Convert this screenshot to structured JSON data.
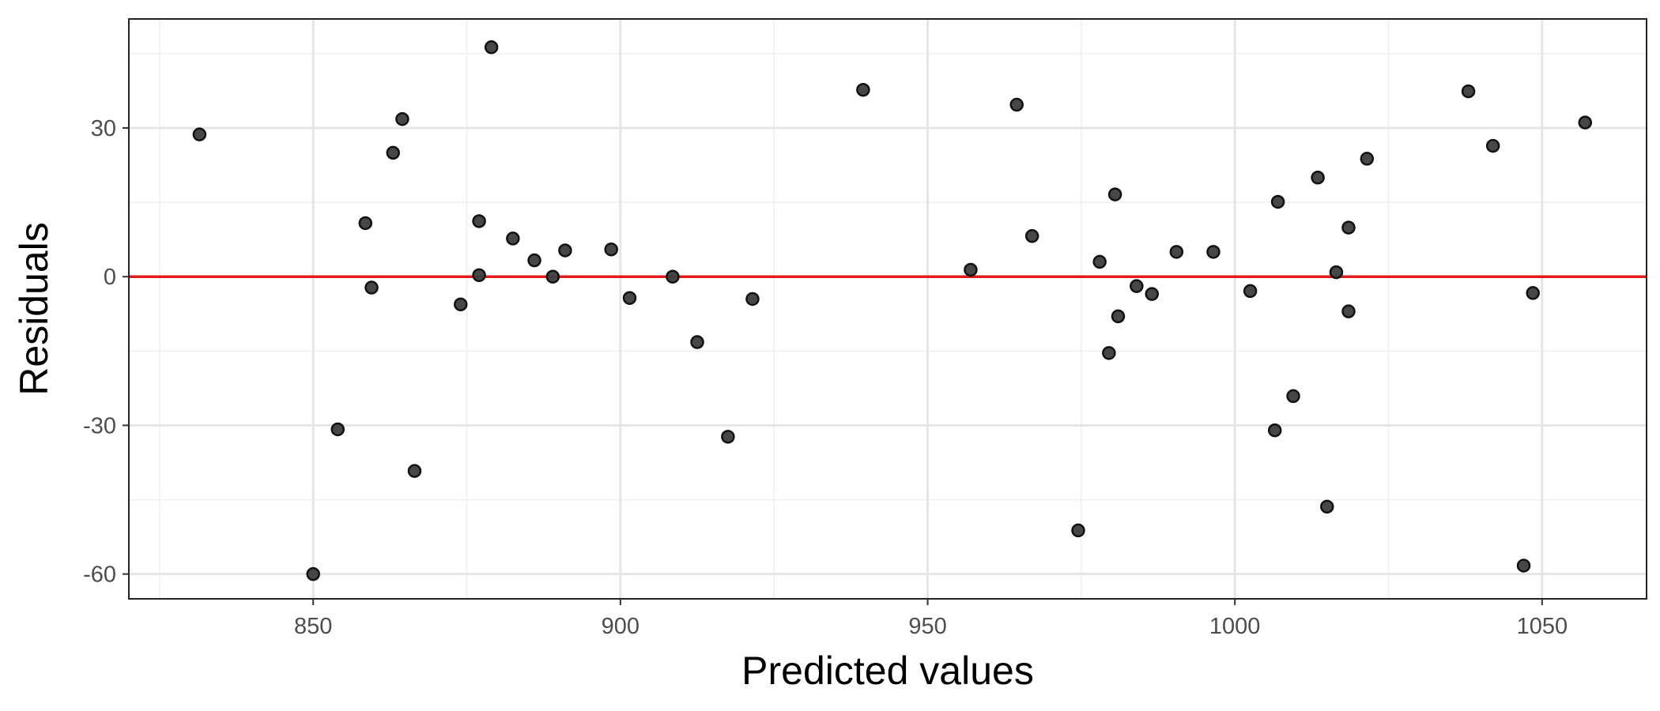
{
  "chart_data": {
    "type": "scatter",
    "title": "",
    "xlabel": "Predicted values",
    "ylabel": "Residuals",
    "xlim": [
      820,
      1067
    ],
    "ylim": [
      -65,
      52
    ],
    "xticks": [
      850,
      900,
      950,
      1000,
      1050
    ],
    "yticks": [
      -60,
      -30,
      0,
      30
    ],
    "xtick_labels": [
      "850",
      "900",
      "950",
      "1000",
      "1050"
    ],
    "ytick_labels": [
      "-60",
      "-30",
      "0",
      "30"
    ],
    "grid": true,
    "legend": "none",
    "reference_line": {
      "y": 0,
      "color": "#e31a1c"
    },
    "point_color": "#3d3d3d",
    "points": [
      {
        "x": 831.5,
        "y": 28.7
      },
      {
        "x": 850.0,
        "y": -60.0
      },
      {
        "x": 854.0,
        "y": -30.8
      },
      {
        "x": 858.5,
        "y": 10.8
      },
      {
        "x": 859.5,
        "y": -2.2
      },
      {
        "x": 863.0,
        "y": 25.0
      },
      {
        "x": 864.5,
        "y": 31.8
      },
      {
        "x": 866.5,
        "y": -39.2
      },
      {
        "x": 874.0,
        "y": -5.6
      },
      {
        "x": 877.0,
        "y": 11.2
      },
      {
        "x": 877.0,
        "y": 0.3
      },
      {
        "x": 879.0,
        "y": 46.3
      },
      {
        "x": 882.5,
        "y": 7.7
      },
      {
        "x": 886.0,
        "y": 3.3
      },
      {
        "x": 889.0,
        "y": 0.0
      },
      {
        "x": 891.0,
        "y": 5.3
      },
      {
        "x": 898.5,
        "y": 5.5
      },
      {
        "x": 901.5,
        "y": -4.3
      },
      {
        "x": 908.5,
        "y": 0.0
      },
      {
        "x": 912.5,
        "y": -13.2
      },
      {
        "x": 917.5,
        "y": -32.3
      },
      {
        "x": 921.5,
        "y": -4.5
      },
      {
        "x": 939.5,
        "y": 37.7
      },
      {
        "x": 957.0,
        "y": 1.4
      },
      {
        "x": 964.5,
        "y": 34.7
      },
      {
        "x": 967.0,
        "y": 8.2
      },
      {
        "x": 974.5,
        "y": -51.2
      },
      {
        "x": 978.0,
        "y": 3.0
      },
      {
        "x": 979.5,
        "y": -15.4
      },
      {
        "x": 980.5,
        "y": 16.6
      },
      {
        "x": 981.0,
        "y": -8.0
      },
      {
        "x": 984.0,
        "y": -1.9
      },
      {
        "x": 986.5,
        "y": -3.5
      },
      {
        "x": 990.5,
        "y": 5.0
      },
      {
        "x": 996.5,
        "y": 5.0
      },
      {
        "x": 1002.5,
        "y": -2.9
      },
      {
        "x": 1006.5,
        "y": -31.0
      },
      {
        "x": 1007.0,
        "y": 15.1
      },
      {
        "x": 1009.5,
        "y": -24.1
      },
      {
        "x": 1013.5,
        "y": 20.0
      },
      {
        "x": 1015.0,
        "y": -46.4
      },
      {
        "x": 1016.5,
        "y": 0.9
      },
      {
        "x": 1018.5,
        "y": 9.9
      },
      {
        "x": 1018.5,
        "y": -7.0
      },
      {
        "x": 1021.5,
        "y": 23.8
      },
      {
        "x": 1038.0,
        "y": 37.4
      },
      {
        "x": 1042.0,
        "y": 26.4
      },
      {
        "x": 1047.0,
        "y": -58.3
      },
      {
        "x": 1048.5,
        "y": -3.3
      },
      {
        "x": 1057.0,
        "y": 31.1
      }
    ]
  }
}
